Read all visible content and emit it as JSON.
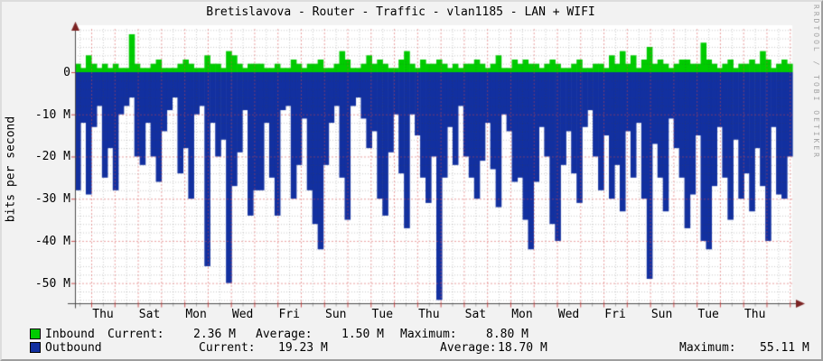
{
  "chart_data": {
    "type": "area",
    "title": "Bretislavova - Router - Traffic - vlan1185 - LAN + WIFI",
    "ylabel": "bits per second",
    "watermark": "RRDTOOL / TOBI OETIKER",
    "unit": "M bits per second",
    "ylim": [
      -55,
      10.5
    ],
    "grid": "minor gray dotted every 2M / 12h, major red dashed every 10M / 1 day",
    "legend_position": "bottom-left, two rows",
    "y_ticks": [
      {
        "label": "0",
        "value": 0
      },
      {
        "label": "-10 M",
        "value": -10
      },
      {
        "label": "-20 M",
        "value": -20
      },
      {
        "label": "-30 M",
        "value": -30
      },
      {
        "label": "-40 M",
        "value": -40
      },
      {
        "label": "-50 M",
        "value": -50
      }
    ],
    "x_tick_labels": [
      "Thu",
      "Sat",
      "Mon",
      "Wed",
      "Fri",
      "Sun",
      "Tue",
      "Thu",
      "Sat",
      "Mon",
      "Wed",
      "Fri",
      "Sun",
      "Tue",
      "Thu"
    ],
    "x_tick_spacing_days": 2,
    "series": [
      {
        "name": "Inbound",
        "color": "#00CC00",
        "direction": "up",
        "values": [
          2,
          1,
          4,
          2,
          1,
          2,
          1,
          2,
          1,
          1,
          9,
          2,
          1,
          1,
          2,
          3,
          1,
          1,
          1,
          2,
          3,
          2,
          1,
          1,
          4,
          2,
          2,
          1,
          5,
          4,
          2,
          1,
          2,
          2,
          2,
          1,
          1,
          2,
          1,
          1,
          3,
          2,
          1,
          2,
          2,
          3,
          1,
          1,
          2,
          5,
          3,
          1,
          1,
          2,
          4,
          2,
          3,
          2,
          1,
          1,
          3,
          5,
          2,
          1,
          3,
          2,
          2,
          3,
          2,
          1,
          2,
          1,
          2,
          2,
          3,
          2,
          1,
          2,
          4,
          1,
          1,
          3,
          2,
          3,
          2,
          2,
          1,
          2,
          3,
          2,
          1,
          1,
          2,
          3,
          1,
          1,
          2,
          2,
          1,
          4,
          2,
          5,
          2,
          4,
          1,
          3,
          6,
          2,
          3,
          2,
          1,
          2,
          3,
          3,
          2,
          2,
          7,
          3,
          2,
          1,
          2,
          3,
          1,
          2,
          2,
          3,
          2,
          5,
          3,
          1,
          2,
          3,
          2
        ]
      },
      {
        "name": "Outbound",
        "color": "#1230A0",
        "direction": "down",
        "values": [
          -28,
          -12,
          -29,
          -13,
          -8,
          -25,
          -18,
          -28,
          -10,
          -8,
          -6,
          -20,
          -22,
          -12,
          -20,
          -26,
          -14,
          -9,
          -6,
          -24,
          -18,
          -30,
          -10,
          -8,
          -46,
          -12,
          -20,
          -16,
          -50,
          -27,
          -19,
          -9,
          -34,
          -28,
          -28,
          -12,
          -25,
          -34,
          -9,
          -8,
          -30,
          -22,
          -11,
          -28,
          -36,
          -42,
          -22,
          -12,
          -8,
          -25,
          -35,
          -8,
          -6,
          -11,
          -18,
          -14,
          -30,
          -34,
          -19,
          -10,
          -24,
          -37,
          -10,
          -15,
          -25,
          -31,
          -20,
          -54,
          -25,
          -13,
          -22,
          -8,
          -20,
          -25,
          -30,
          -21,
          -12,
          -23,
          -32,
          -10,
          -14,
          -26,
          -25,
          -35,
          -42,
          -26,
          -13,
          -20,
          -36,
          -40,
          -22,
          -14,
          -24,
          -31,
          -13,
          -9,
          -20,
          -28,
          -15,
          -30,
          -22,
          -33,
          -14,
          -25,
          -12,
          -30,
          -49,
          -17,
          -25,
          -33,
          -11,
          -18,
          -25,
          -37,
          -29,
          -15,
          -40,
          -42,
          -27,
          -13,
          -25,
          -35,
          -16,
          -30,
          -24,
          -33,
          -18,
          -27,
          -40,
          -13,
          -29,
          -30,
          -20
        ]
      }
    ]
  },
  "legend": {
    "inbound": {
      "label": "Inbound",
      "current_label": "Current:",
      "current": "2.36 M",
      "average_label": "Average:",
      "average": "1.50 M",
      "maximum_label": "Maximum:",
      "maximum": "8.80 M"
    },
    "outbound": {
      "label": "Outbound",
      "current_label": "Current:",
      "current": "19.23 M",
      "average_label": "Average:",
      "average": "18.70 M",
      "maximum_label": "Maximum:",
      "maximum": "55.11 M"
    }
  }
}
